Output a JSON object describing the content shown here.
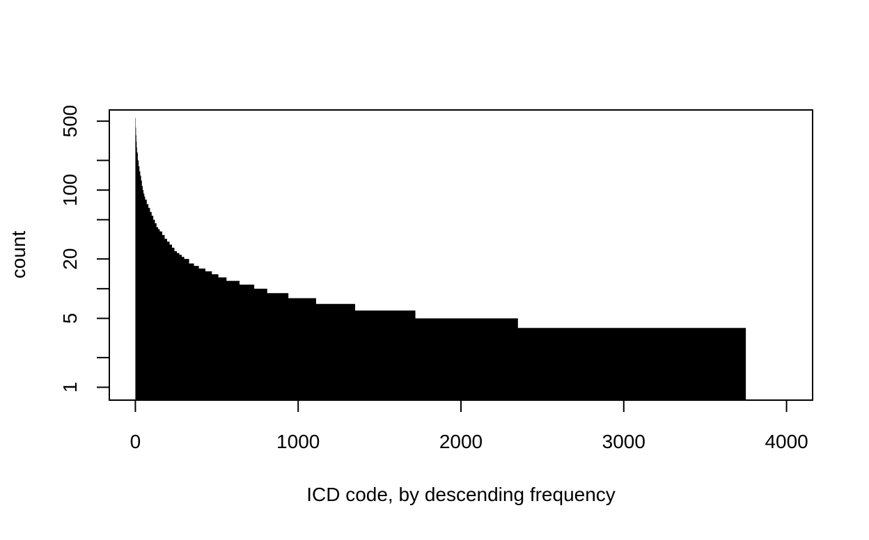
{
  "chart_data": {
    "type": "area",
    "title": "",
    "xlabel": "ICD code, by descending frequency",
    "ylabel": "count",
    "xlim": [
      -160,
      4160
    ],
    "ylim": [
      0.74,
      650
    ],
    "y_scale": "log",
    "x_ticks": [
      0,
      1000,
      2000,
      3000,
      4000
    ],
    "x_tick_labels": [
      "0",
      "1000",
      "2000",
      "3000",
      "4000"
    ],
    "y_major_ticks": [
      1,
      5,
      20,
      100,
      500
    ],
    "y_major_tick_labels": [
      "1",
      "5",
      "20",
      "100",
      "500"
    ],
    "y_minor_ticks": [
      2,
      10,
      50,
      200
    ],
    "grid": false,
    "legend": "none",
    "color": "#000000",
    "series": [
      {
        "x": [
          0,
          2,
          4,
          6,
          8,
          10,
          15,
          20,
          25,
          30,
          35,
          40,
          45,
          50,
          55,
          60,
          70,
          80,
          90,
          100,
          110,
          120,
          130,
          140,
          150,
          165,
          180,
          195,
          210,
          225,
          240,
          255,
          270,
          285,
          300,
          330,
          360,
          390,
          430,
          470,
          510,
          560,
          640,
          730,
          810,
          940,
          1110,
          1350,
          1720,
          2350,
          3750
        ],
        "y": [
          540,
          430,
          360,
          310,
          270,
          240,
          200,
          175,
          155,
          140,
          125,
          110,
          100,
          92,
          86,
          80,
          72,
          66,
          60,
          55,
          50,
          46,
          42,
          40,
          38,
          35,
          32,
          30,
          28,
          26,
          24,
          23,
          22,
          21,
          20,
          18,
          17,
          16,
          15,
          14,
          13,
          12,
          11,
          10,
          9,
          8,
          7,
          6,
          5,
          4,
          3
        ]
      }
    ]
  }
}
